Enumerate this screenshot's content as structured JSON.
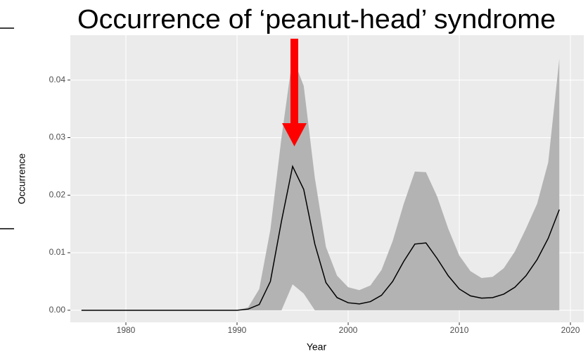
{
  "chart_data": {
    "type": "ribbon-line",
    "title": "Occurrence of ‘peanut-head’ syndrome",
    "x_label": "Year",
    "y_label": "Occurrence",
    "x": [
      1976,
      1977,
      1978,
      1979,
      1980,
      1981,
      1982,
      1983,
      1984,
      1985,
      1986,
      1987,
      1988,
      1989,
      1990,
      1991,
      1992,
      1993,
      1994,
      1995,
      1996,
      1997,
      1998,
      1999,
      2000,
      2001,
      2002,
      2003,
      2004,
      2005,
      2006,
      2007,
      2008,
      2009,
      2010,
      2011,
      2012,
      2013,
      2014,
      2015,
      2016,
      2017,
      2018,
      2019
    ],
    "values": [
      0,
      0,
      0,
      0,
      0,
      0,
      0,
      0,
      0,
      0,
      0,
      0,
      0,
      0,
      0,
      0.0002,
      0.001,
      0.005,
      0.0155,
      0.025,
      0.021,
      0.0115,
      0.0048,
      0.0022,
      0.0013,
      0.0011,
      0.0015,
      0.0026,
      0.005,
      0.0085,
      0.0115,
      0.0117,
      0.009,
      0.006,
      0.0037,
      0.0025,
      0.0021,
      0.0022,
      0.0028,
      0.004,
      0.006,
      0.0088,
      0.0125,
      0.0175
    ],
    "lower": [
      0,
      0,
      0,
      0,
      0,
      0,
      0,
      0,
      0,
      0,
      0,
      0,
      0,
      0,
      0,
      0,
      0,
      0,
      0,
      0.0045,
      0.0029,
      0,
      0,
      0,
      0,
      0,
      0,
      0,
      0,
      0,
      0,
      0,
      0,
      0,
      0,
      0,
      0,
      0,
      0,
      0,
      0,
      0,
      0,
      0
    ],
    "upper": [
      0,
      0,
      0,
      0,
      0,
      0,
      0,
      0,
      0,
      0,
      0,
      0,
      0,
      0,
      0,
      0.0005,
      0.0037,
      0.014,
      0.03,
      0.044,
      0.039,
      0.023,
      0.011,
      0.006,
      0.004,
      0.0035,
      0.0043,
      0.007,
      0.012,
      0.0185,
      0.0241,
      0.024,
      0.0198,
      0.0142,
      0.0095,
      0.0068,
      0.0056,
      0.0058,
      0.0073,
      0.0102,
      0.0142,
      0.0185,
      0.0257,
      0.0437
    ],
    "line_color": "#000000",
    "ribbon_color": "#b3b3b3",
    "xlim": [
      1975,
      2021.2
    ],
    "xticks": [
      1980,
      1990,
      2000,
      2010,
      2020
    ],
    "ylim": [
      -0.0021,
      0.0478
    ],
    "yticks": [
      {
        "value": 0,
        "label": "0.00"
      },
      {
        "value": 0.01,
        "label": "0.01"
      },
      {
        "value": 0.02,
        "label": "0.02"
      },
      {
        "value": 0.03,
        "label": "0.03"
      },
      {
        "value": 0.04,
        "label": "0.04"
      }
    ],
    "grid": true
  }
}
